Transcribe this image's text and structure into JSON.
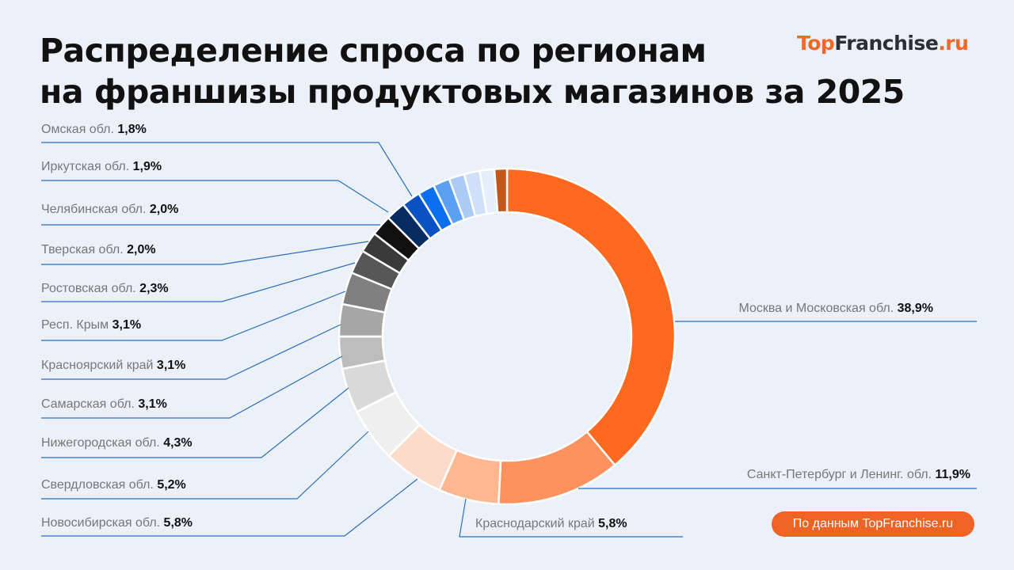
{
  "logo": {
    "part1": "Top",
    "part2": "Franchise",
    "part3": ".ru"
  },
  "source_badge": "По данным TopFranchise.ru",
  "chart_data": {
    "type": "pie",
    "donut": true,
    "title": "Распределение спроса по регионам на франшизы продуктовых магазинов за 2025",
    "title_lines": [
      "Распределение спроса по регионам",
      "на франшизы продуктовых магазинов за 2025"
    ],
    "slices": [
      {
        "label": "Москва и Московская обл.",
        "value": 38.9,
        "value_text": "38,9%",
        "color": "#fd6a1f"
      },
      {
        "label": "Санкт-Петербург и Ленинг. обл.",
        "value": 11.9,
        "value_text": "11,9%",
        "color": "#fd925f"
      },
      {
        "label": "Краснодарский край",
        "value": 5.8,
        "value_text": "5,8%",
        "color": "#fdb892"
      },
      {
        "label": "Новосибирская обл.",
        "value": 5.8,
        "value_text": "5,8%",
        "color": "#fddbcb"
      },
      {
        "label": "Свердловская обл.",
        "value": 5.2,
        "value_text": "5,2%",
        "color": "#efefef"
      },
      {
        "label": "Нижегородская обл.",
        "value": 4.3,
        "value_text": "4,3%",
        "color": "#d9d9d9"
      },
      {
        "label": "Самарская обл.",
        "value": 3.1,
        "value_text": "3,1%",
        "color": "#bdbdbd"
      },
      {
        "label": "Красноярский край",
        "value": 3.1,
        "value_text": "3,1%",
        "color": "#a6a6a6"
      },
      {
        "label": "Респ. Крым",
        "value": 3.1,
        "value_text": "3,1%",
        "color": "#808080"
      },
      {
        "label": "Ростовская обл.",
        "value": 2.3,
        "value_text": "2,3%",
        "color": "#575757"
      },
      {
        "label": "Тверская обл.",
        "value": 2.0,
        "value_text": "2,0%",
        "color": "#3a3a3a"
      },
      {
        "label": "Челябинская обл.",
        "value": 2.0,
        "value_text": "2,0%",
        "color": "#111111"
      },
      {
        "label": "Иркутская обл.",
        "value": 1.9,
        "value_text": "1,9%",
        "color": "#062b63"
      },
      {
        "label": "Омская обл.",
        "value": 1.8,
        "value_text": "1,8%",
        "color": "#0a52c4"
      },
      {
        "label": "",
        "value": 1.6,
        "color": "#0a6ef0"
      },
      {
        "label": "",
        "value": 1.6,
        "color": "#5ba0f2"
      },
      {
        "label": "",
        "value": 1.5,
        "color": "#a9cbf6"
      },
      {
        "label": "",
        "value": 1.5,
        "color": "#cfe0f8"
      },
      {
        "label": "",
        "value": 1.4,
        "color": "#e6eefb"
      },
      {
        "label": "",
        "value": 1.2,
        "color": "#c4561c"
      }
    ],
    "leader_line_color": "#2a6fc0",
    "background": "#ecf0f9"
  }
}
